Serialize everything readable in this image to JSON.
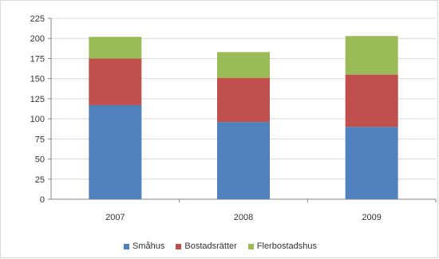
{
  "chart_data": {
    "type": "bar",
    "stacked": true,
    "categories": [
      "2007",
      "2008",
      "2009"
    ],
    "series": [
      {
        "name": "Småhus",
        "color": "#4f81bd",
        "values": [
          117,
          96,
          90
        ]
      },
      {
        "name": "Bostadsrätter",
        "color": "#c0504d",
        "values": [
          58,
          55,
          65
        ]
      },
      {
        "name": "Flerbostadshus",
        "color": "#9bbb59",
        "values": [
          27,
          32,
          48
        ]
      }
    ],
    "ylim": [
      0,
      225
    ],
    "yticks": [
      "0",
      "25",
      "50",
      "75",
      "100",
      "125",
      "150",
      "175",
      "200",
      "225"
    ],
    "grid": true,
    "legend_position": "bottom",
    "title": "",
    "xlabel": "",
    "ylabel": ""
  }
}
